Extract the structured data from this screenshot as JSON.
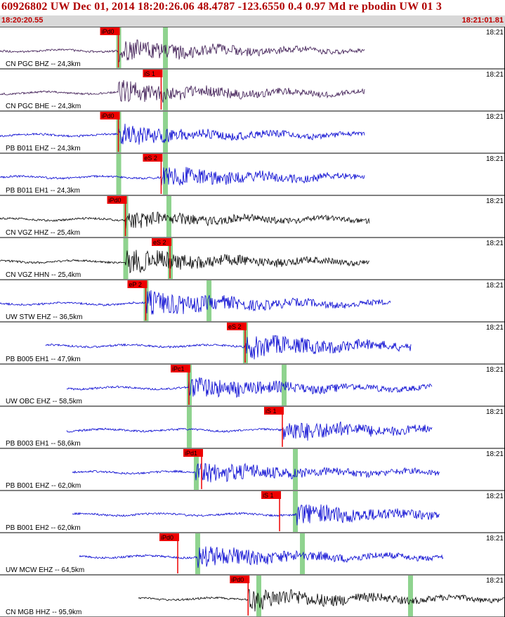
{
  "header": {
    "title": "60926802 UW Dec 01, 2014 18:20:26.06   48.4787 -123.6550  0.4 0.97 Md re pbodin UW 01   3",
    "start_time": "18:20:20.55",
    "end_time": "18:21:01.81"
  },
  "colors": {
    "title": "#b00000",
    "time_text": "#c00000",
    "pick": "#ee0000",
    "window": "#8fd38f"
  },
  "traces": [
    {
      "label": "CN PGC BHZ -- 24,3km",
      "time_tag": "18:21",
      "color": "#3a1650",
      "pick": "iPd0",
      "pick_t": 0.2344,
      "win": [
        0.2344,
        0.3269
      ],
      "start": 0.0,
      "end": 0.7227,
      "arrival": 0.2344,
      "amp": 14
    },
    {
      "label": "CN PGC BHE -- 24,3km",
      "time_tag": "18:21",
      "color": "#3a1650",
      "pick": "iS 1",
      "pick_t": 0.3191,
      "win": [
        0.3269
      ],
      "start": 0.0,
      "end": 0.7227,
      "arrival": 0.2344,
      "amp": 14
    },
    {
      "label": "PB B011 EHZ -- 24,3km",
      "time_tag": "18:21",
      "color": "#0000d0",
      "pick": "iPd0",
      "pick_t": 0.2344,
      "win": [
        0.2344,
        0.3269
      ],
      "start": 0.0,
      "end": 0.7227,
      "arrival": 0.2344,
      "amp": 13
    },
    {
      "label": "PB B011 EH1 -- 24,3km",
      "time_tag": "18:21",
      "color": "#0000d0",
      "pick": "eS 2",
      "pick_t": 0.3191,
      "win": [
        0.2344,
        0.3269
      ],
      "start": 0.0,
      "end": 0.7227,
      "arrival": 0.3191,
      "amp": 14
    },
    {
      "label": "CN VGZ HHZ -- 25,4km",
      "time_tag": "18:21",
      "color": "#000000",
      "pick": "iPd0",
      "pick_t": 0.2483,
      "win": [
        0.2483,
        0.3338
      ],
      "start": 0.0,
      "end": 0.7323,
      "arrival": 0.2483,
      "amp": 10
    },
    {
      "label": "CN VGZ HHN -- 25,4km",
      "time_tag": "18:21",
      "color": "#000000",
      "pick": "eS 2",
      "pick_t": 0.3366,
      "win": [
        0.2483,
        0.3366
      ],
      "start": 0.0,
      "end": 0.7323,
      "arrival": 0.2483,
      "amp": 16
    },
    {
      "label": "UW STW EHZ -- 36,5km",
      "time_tag": "18:21",
      "color": "#0000d0",
      "pick": "eP 2",
      "pick_t": 0.2886,
      "win": [
        0.2886,
        0.4132
      ],
      "start": 0.0,
      "end": 0.774,
      "arrival": 0.2886,
      "amp": 16
    },
    {
      "label": "PB B005 EH1 -- 47,9km",
      "time_tag": "18:21",
      "color": "#0000d0",
      "pick": "eS 2",
      "pick_t": 0.4854,
      "win": [
        0.4854
      ],
      "start": 0.0904,
      "end": 0.815,
      "arrival": 0.4854,
      "amp": 16
    },
    {
      "label": "UW OBC EHZ -- 58,5km",
      "time_tag": "18:21",
      "color": "#0000d0",
      "pick": "iPc1",
      "pick_t": 0.3741,
      "win": [
        0.3741,
        0.5619
      ],
      "start": 0.1321,
      "end": 0.8567,
      "arrival": 0.3741,
      "amp": 14
    },
    {
      "label": "PB B003 EH1 -- 58,6km",
      "time_tag": "18:21",
      "color": "#0000d0",
      "pick": "iS 1",
      "pick_t": 0.5591,
      "win": [
        0.3741
      ],
      "start": 0.1321,
      "end": 0.8567,
      "arrival": 0.5591,
      "amp": 14
    },
    {
      "label": "PB B001 EHZ -- 62,0km",
      "time_tag": "18:21",
      "color": "#0000d0",
      "pick": "iPd1",
      "pick_t": 0.3992,
      "win": [
        0.388,
        0.5842
      ],
      "start": 0.1433,
      "end": 0.8707,
      "arrival": 0.388,
      "amp": 14
    },
    {
      "label": "PB B001 EH2 -- 62,0km",
      "time_tag": "18:21",
      "color": "#0000d0",
      "pick": "iS 1",
      "pick_t": 0.5536,
      "win": [
        0.5842
      ],
      "start": 0.1433,
      "end": 0.8707,
      "arrival": 0.5842,
      "amp": 14
    },
    {
      "label": "UW MCW EHZ -- 64,5km",
      "time_tag": "18:21",
      "color": "#0000d0",
      "pick": "iPd0",
      "pick_t": 0.3519,
      "win": [
        0.3908,
        0.5981
      ],
      "start": 0.1572,
      "end": 0.879,
      "arrival": 0.3908,
      "amp": 14
    },
    {
      "label": "CN MGB HHZ -- 95,9km",
      "time_tag": "18:21",
      "color": "#000000",
      "pick": "iPd0",
      "pick_t": 0.4913,
      "win": [
        0.5118,
        0.8122
      ],
      "start": 0.274,
      "end": 1.0,
      "arrival": 0.4913,
      "amp": 14
    }
  ]
}
